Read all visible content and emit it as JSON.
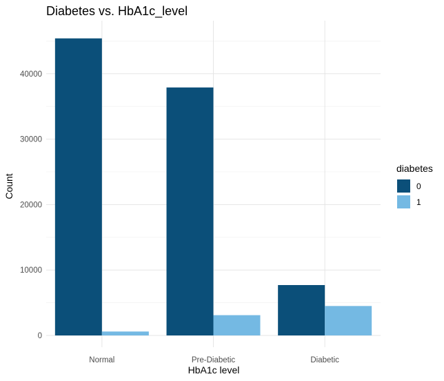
{
  "chart_data": {
    "type": "bar",
    "title": "Diabetes vs. HbA1c_level",
    "xlabel": "HbA1c level",
    "ylabel": "Count",
    "categories": [
      "Normal",
      "Pre-Diabetic",
      "Diabetic"
    ],
    "series": [
      {
        "name": "0",
        "color": "#0b4f79",
        "values": [
          45400,
          37900,
          7700
        ]
      },
      {
        "name": "1",
        "color": "#74b9e3",
        "values": [
          600,
          3100,
          4500
        ]
      }
    ],
    "ylim": [
      0,
      47500
    ],
    "yticks": [
      0,
      10000,
      20000,
      30000,
      40000
    ],
    "ytick_labels": [
      "0",
      "10000",
      "20000",
      "30000",
      "40000"
    ],
    "grid": true,
    "legend": {
      "title": "diabetes",
      "position": "right"
    }
  }
}
